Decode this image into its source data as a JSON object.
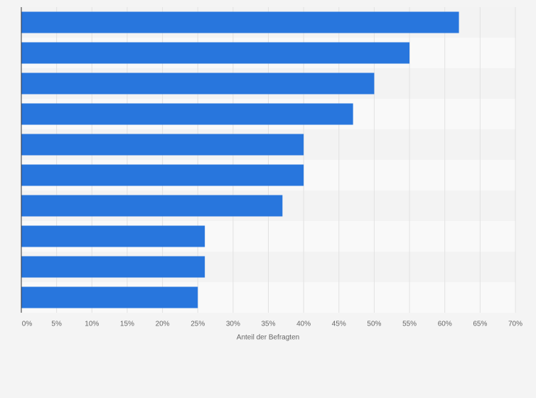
{
  "chart_data": {
    "type": "hbar",
    "x_label": "Anteil der Befragten",
    "categories": [
      null,
      null,
      null,
      null,
      null,
      null,
      null,
      null,
      null,
      null
    ],
    "values": [
      62,
      55,
      50,
      47,
      40,
      40,
      37,
      26,
      26,
      25
    ],
    "color": "#2876dd",
    "xlim": [
      0,
      70
    ],
    "xticks": [
      {
        "value": 0,
        "label": "0%"
      },
      {
        "value": 5,
        "label": "5%"
      },
      {
        "value": 10,
        "label": "10%"
      },
      {
        "value": 15,
        "label": "15%"
      },
      {
        "value": 20,
        "label": "20%"
      },
      {
        "value": 25,
        "label": "25%"
      },
      {
        "value": 30,
        "label": "30%"
      },
      {
        "value": 35,
        "label": "35%"
      },
      {
        "value": 40,
        "label": "40%"
      },
      {
        "value": 45,
        "label": "45%"
      },
      {
        "value": 50,
        "label": "50%"
      },
      {
        "value": 55,
        "label": "55%"
      },
      {
        "value": 60,
        "label": "60%"
      },
      {
        "value": 65,
        "label": "65%"
      },
      {
        "value": 70,
        "label": "70%"
      }
    ],
    "grid": true
  }
}
